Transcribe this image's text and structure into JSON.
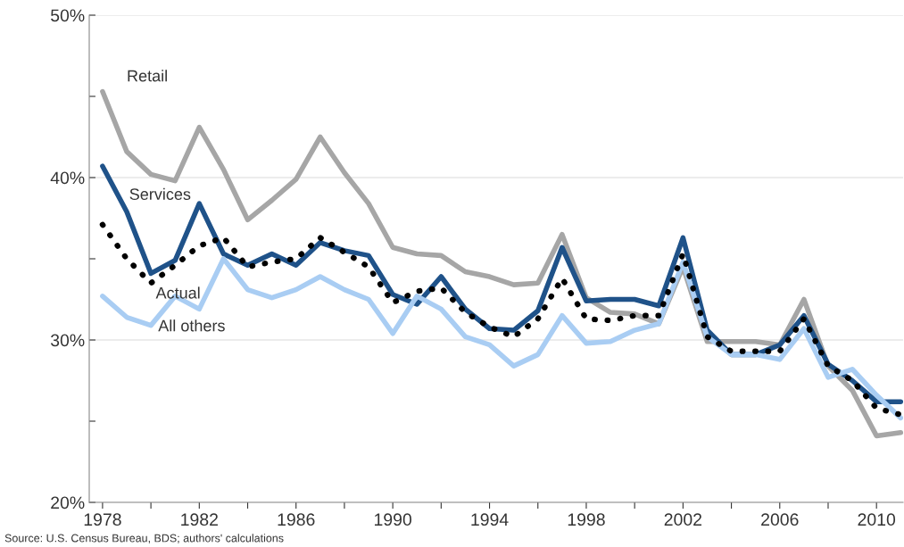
{
  "chart_data": {
    "type": "line",
    "annotations": [
      "Source: U.S. Census Bureau, BDS; authors' calculations"
    ],
    "x": [
      1978,
      1979,
      1980,
      1981,
      1982,
      1983,
      1984,
      1985,
      1986,
      1987,
      1988,
      1989,
      1990,
      1991,
      1992,
      1993,
      1994,
      1995,
      1996,
      1997,
      1998,
      1999,
      2000,
      2001,
      2002,
      2003,
      2004,
      2005,
      2006,
      2007,
      2008,
      2009,
      2010,
      2011
    ],
    "series": [
      {
        "name": "Retail",
        "color": "#a6a6a6",
        "line_style": "solid",
        "values": [
          45.3,
          41.6,
          40.2,
          39.8,
          43.1,
          40.5,
          37.4,
          38.6,
          39.9,
          42.5,
          40.3,
          38.4,
          35.7,
          35.3,
          35.2,
          34.2,
          33.9,
          33.4,
          33.5,
          36.5,
          32.6,
          31.7,
          31.6,
          31.0,
          34.5,
          29.9,
          29.9,
          29.9,
          29.7,
          32.5,
          28.4,
          26.9,
          24.1,
          24.3
        ]
      },
      {
        "name": "Services",
        "color": "#1f5289",
        "line_style": "solid",
        "values": [
          40.7,
          37.9,
          34.1,
          34.9,
          38.4,
          35.3,
          34.6,
          35.3,
          34.6,
          36.0,
          35.5,
          35.2,
          32.8,
          32.2,
          33.9,
          31.9,
          30.7,
          30.6,
          31.8,
          35.7,
          32.4,
          32.5,
          32.5,
          32.1,
          36.3,
          30.6,
          29.1,
          29.1,
          29.7,
          31.5,
          28.5,
          27.5,
          26.2,
          26.2
        ]
      },
      {
        "name": "Actual",
        "color": "#000000",
        "line_style": "dotted",
        "values": [
          37.1,
          35.0,
          33.5,
          34.6,
          35.8,
          36.3,
          34.5,
          34.8,
          35.0,
          36.3,
          35.4,
          34.5,
          32.3,
          33.0,
          33.2,
          31.7,
          30.8,
          30.2,
          31.3,
          33.8,
          31.3,
          31.2,
          31.5,
          31.5,
          35.3,
          30.2,
          29.3,
          29.3,
          29.3,
          31.3,
          28.4,
          27.5,
          25.8,
          25.4
        ]
      },
      {
        "name": "All others",
        "color": "#a9cdf3",
        "line_style": "solid",
        "values": [
          32.7,
          31.4,
          30.9,
          32.7,
          31.9,
          35.0,
          33.1,
          32.6,
          33.1,
          33.9,
          33.1,
          32.5,
          30.4,
          32.7,
          31.9,
          30.2,
          29.7,
          28.4,
          29.1,
          31.5,
          29.8,
          29.9,
          30.6,
          31.0,
          34.8,
          30.2,
          29.1,
          29.1,
          28.8,
          30.7,
          27.7,
          28.2,
          26.6,
          25.2
        ]
      }
    ],
    "xlim": [
      1977.45,
      2011.1
    ],
    "xticks": [
      1978,
      {
        "value": 1980,
        "label": null
      },
      1982,
      {
        "value": 1984,
        "label": null
      },
      1986,
      {
        "value": 1988,
        "label": null
      },
      1990,
      {
        "value": 1992,
        "label": null
      },
      1994,
      {
        "value": 1996,
        "label": null
      },
      1998,
      {
        "value": 2000,
        "label": null
      },
      2002,
      {
        "value": 2004,
        "label": null
      },
      2006,
      {
        "value": 2008,
        "label": null
      },
      2010
    ],
    "ylim": [
      20,
      50
    ],
    "yticks": [
      {
        "value": 20,
        "label": "20%"
      },
      {
        "value": 25,
        "label": null
      },
      {
        "value": 30,
        "label": "30%"
      },
      {
        "value": 35,
        "label": null
      },
      {
        "value": 40,
        "label": "40%"
      },
      {
        "value": 45,
        "label": null
      },
      {
        "value": 50,
        "label": "50%"
      }
    ],
    "grid": "y",
    "legend": false,
    "marker": "none"
  }
}
